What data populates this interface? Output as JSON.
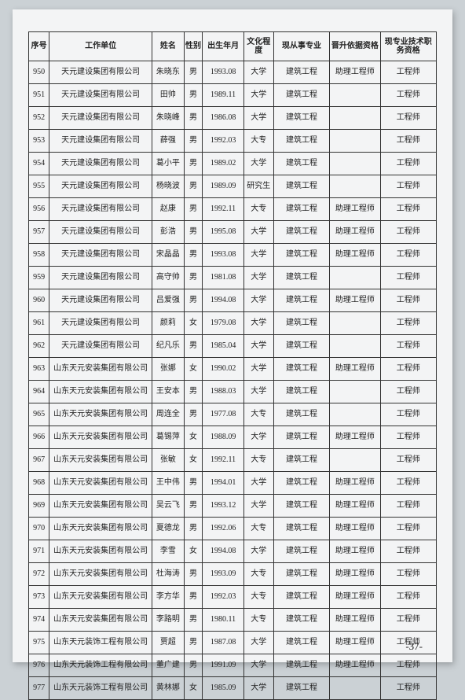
{
  "page_number": "-37-",
  "columns": [
    "序号",
    "工作单位",
    "姓名",
    "性别",
    "出生年月",
    "文化程度",
    "现从事专业",
    "晋升依据资格",
    "现专业技术职务资格"
  ],
  "rows": [
    [
      "950",
      "天元建设集团有限公司",
      "朱晓东",
      "男",
      "1993.08",
      "大学",
      "建筑工程",
      "助理工程师",
      "工程师"
    ],
    [
      "951",
      "天元建设集团有限公司",
      "田帅",
      "男",
      "1989.11",
      "大学",
      "建筑工程",
      "",
      "工程师"
    ],
    [
      "952",
      "天元建设集团有限公司",
      "朱晓峰",
      "男",
      "1986.08",
      "大学",
      "建筑工程",
      "",
      "工程师"
    ],
    [
      "953",
      "天元建设集团有限公司",
      "薛强",
      "男",
      "1992.03",
      "大专",
      "建筑工程",
      "",
      "工程师"
    ],
    [
      "954",
      "天元建设集团有限公司",
      "葛小平",
      "男",
      "1989.02",
      "大学",
      "建筑工程",
      "",
      "工程师"
    ],
    [
      "955",
      "天元建设集团有限公司",
      "杨晓波",
      "男",
      "1989.09",
      "研究生",
      "建筑工程",
      "",
      "工程师"
    ],
    [
      "956",
      "天元建设集团有限公司",
      "赵康",
      "男",
      "1992.11",
      "大专",
      "建筑工程",
      "助理工程师",
      "工程师"
    ],
    [
      "957",
      "天元建设集团有限公司",
      "彭浩",
      "男",
      "1995.08",
      "大学",
      "建筑工程",
      "助理工程师",
      "工程师"
    ],
    [
      "958",
      "天元建设集团有限公司",
      "宋晶晶",
      "男",
      "1993.08",
      "大学",
      "建筑工程",
      "助理工程师",
      "工程师"
    ],
    [
      "959",
      "天元建设集团有限公司",
      "高守帅",
      "男",
      "1981.08",
      "大学",
      "建筑工程",
      "",
      "工程师"
    ],
    [
      "960",
      "天元建设集团有限公司",
      "吕爱强",
      "男",
      "1994.08",
      "大学",
      "建筑工程",
      "助理工程师",
      "工程师"
    ],
    [
      "961",
      "天元建设集团有限公司",
      "颜莉",
      "女",
      "1979.08",
      "大学",
      "建筑工程",
      "",
      "工程师"
    ],
    [
      "962",
      "天元建设集团有限公司",
      "纪凡乐",
      "男",
      "1985.04",
      "大学",
      "建筑工程",
      "",
      "工程师"
    ],
    [
      "963",
      "山东天元安装集团有限公司",
      "张娜",
      "女",
      "1990.02",
      "大学",
      "建筑工程",
      "助理工程师",
      "工程师"
    ],
    [
      "964",
      "山东天元安装集团有限公司",
      "王安本",
      "男",
      "1988.03",
      "大学",
      "建筑工程",
      "",
      "工程师"
    ],
    [
      "965",
      "山东天元安装集团有限公司",
      "周连全",
      "男",
      "1977.08",
      "大专",
      "建筑工程",
      "",
      "工程师"
    ],
    [
      "966",
      "山东天元安装集团有限公司",
      "葛锡萍",
      "女",
      "1988.09",
      "大学",
      "建筑工程",
      "助理工程师",
      "工程师"
    ],
    [
      "967",
      "山东天元安装集团有限公司",
      "张敏",
      "女",
      "1992.11",
      "大专",
      "建筑工程",
      "",
      "工程师"
    ],
    [
      "968",
      "山东天元安装集团有限公司",
      "王中伟",
      "男",
      "1994.01",
      "大学",
      "建筑工程",
      "助理工程师",
      "工程师"
    ],
    [
      "969",
      "山东天元安装集团有限公司",
      "吴云飞",
      "男",
      "1993.12",
      "大学",
      "建筑工程",
      "助理工程师",
      "工程师"
    ],
    [
      "970",
      "山东天元安装集团有限公司",
      "夏德龙",
      "男",
      "1992.06",
      "大专",
      "建筑工程",
      "助理工程师",
      "工程师"
    ],
    [
      "971",
      "山东天元安装集团有限公司",
      "李雪",
      "女",
      "1994.08",
      "大学",
      "建筑工程",
      "助理工程师",
      "工程师"
    ],
    [
      "972",
      "山东天元安装集团有限公司",
      "杜海涛",
      "男",
      "1993.09",
      "大专",
      "建筑工程",
      "助理工程师",
      "工程师"
    ],
    [
      "973",
      "山东天元安装集团有限公司",
      "李方华",
      "男",
      "1992.03",
      "大专",
      "建筑工程",
      "助理工程师",
      "工程师"
    ],
    [
      "974",
      "山东天元安装集团有限公司",
      "李路明",
      "男",
      "1980.11",
      "大专",
      "建筑工程",
      "助理工程师",
      "工程师"
    ],
    [
      "975",
      "山东天元装饰工程有限公司",
      "贾超",
      "男",
      "1987.08",
      "大学",
      "建筑工程",
      "助理工程师",
      "工程师"
    ],
    [
      "976",
      "山东天元装饰工程有限公司",
      "董广建",
      "男",
      "1991.09",
      "大学",
      "建筑工程",
      "助理工程师",
      "工程师"
    ],
    [
      "977",
      "山东天元装饰工程有限公司",
      "黄林娜",
      "女",
      "1985.09",
      "大学",
      "建筑工程",
      "",
      "工程师"
    ]
  ]
}
